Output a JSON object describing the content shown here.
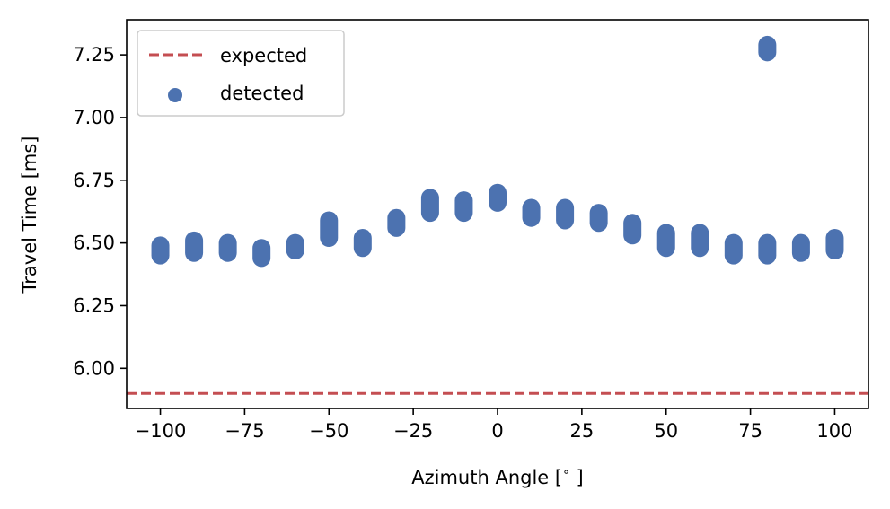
{
  "chart_data": {
    "type": "scatter",
    "xlabel": "Azimuth Angle [$^\\circ$]",
    "xlabel_parts": {
      "main": "Azimuth Angle [",
      "sup": "∘",
      "close": " ]"
    },
    "ylabel": "Travel Time [ms]",
    "xlim": [
      -110,
      110
    ],
    "ylim": [
      5.84,
      7.39
    ],
    "xticks": [
      -100,
      -75,
      -50,
      -25,
      0,
      25,
      50,
      75,
      100
    ],
    "xtick_labels": [
      "−100",
      "−75",
      "−50",
      "−25",
      "0",
      "25",
      "50",
      "75",
      "100"
    ],
    "yticks": [
      6.0,
      6.25,
      6.5,
      6.75,
      7.0,
      7.25
    ],
    "ytick_labels": [
      "6.00",
      "6.25",
      "6.50",
      "6.75",
      "7.00",
      "7.25"
    ],
    "grid": false,
    "legend": {
      "placement": "top-left",
      "entries": [
        {
          "label": "expected",
          "kind": "dashed-line",
          "color": "#c44e52"
        },
        {
          "label": "detected",
          "kind": "marker",
          "color": "#4c72b0"
        }
      ]
    },
    "series": [
      {
        "name": "expected",
        "kind": "hline",
        "y": 5.9,
        "color": "#c44e52"
      },
      {
        "name": "detected",
        "kind": "scatter",
        "color": "#4c72b0",
        "points": [
          {
            "x": -100,
            "y_min": 6.45,
            "y_max": 6.49
          },
          {
            "x": -90,
            "y_min": 6.46,
            "y_max": 6.51
          },
          {
            "x": -80,
            "y_min": 6.46,
            "y_max": 6.5
          },
          {
            "x": -70,
            "y_min": 6.44,
            "y_max": 6.48
          },
          {
            "x": -60,
            "y_min": 6.47,
            "y_max": 6.5
          },
          {
            "x": -50,
            "y_min": 6.52,
            "y_max": 6.59
          },
          {
            "x": -40,
            "y_min": 6.48,
            "y_max": 6.52
          },
          {
            "x": -30,
            "y_min": 6.56,
            "y_max": 6.6
          },
          {
            "x": -20,
            "y_min": 6.62,
            "y_max": 6.68
          },
          {
            "x": -10,
            "y_min": 6.62,
            "y_max": 6.67
          },
          {
            "x": 0,
            "y_min": 6.66,
            "y_max": 6.7
          },
          {
            "x": 10,
            "y_min": 6.6,
            "y_max": 6.64
          },
          {
            "x": 20,
            "y_min": 6.59,
            "y_max": 6.64
          },
          {
            "x": 30,
            "y_min": 6.58,
            "y_max": 6.62
          },
          {
            "x": 40,
            "y_min": 6.53,
            "y_max": 6.58
          },
          {
            "x": 50,
            "y_min": 6.48,
            "y_max": 6.54
          },
          {
            "x": 60,
            "y_min": 6.48,
            "y_max": 6.54
          },
          {
            "x": 70,
            "y_min": 6.45,
            "y_max": 6.5
          },
          {
            "x": 80,
            "y_min": 6.45,
            "y_max": 6.5
          },
          {
            "x": 90,
            "y_min": 6.46,
            "y_max": 6.5
          },
          {
            "x": 100,
            "y_min": 6.47,
            "y_max": 6.52
          },
          {
            "x": 80,
            "y_min": 7.26,
            "y_max": 7.29
          }
        ]
      }
    ]
  }
}
